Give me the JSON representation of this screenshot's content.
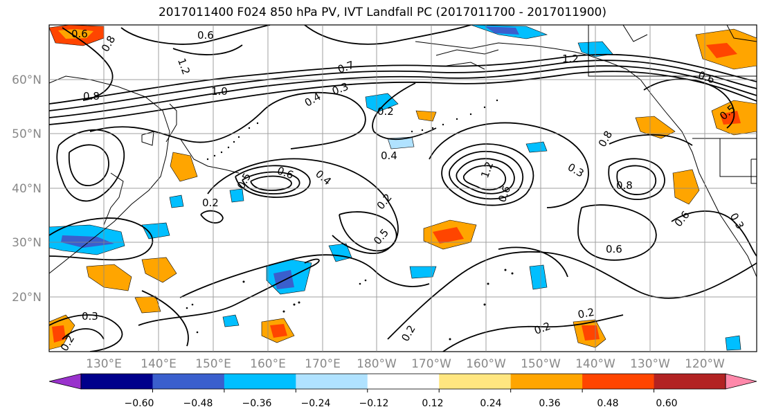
{
  "title": "2017011400 F024 850 hPa PV, IVT Landfall PC (2017011700 - 2017011900)",
  "lat_labels": [
    "60°N",
    "50°N",
    "40°N",
    "30°N",
    "20°N"
  ],
  "lon_labels": [
    "130°E",
    "140°E",
    "150°E",
    "160°E",
    "170°E",
    "180°W",
    "170°W",
    "160°W",
    "150°W",
    "140°W",
    "130°W",
    "120°W"
  ],
  "colorbar": {
    "ticks": [
      "−0.60",
      "−0.48",
      "−0.36",
      "−0.24",
      "−0.12",
      "0.12",
      "0.24",
      "0.36",
      "0.48",
      "0.60"
    ],
    "colors": [
      "#9932cc",
      "#00008b",
      "#3a5fcd",
      "#00bfff",
      "#b0e2ff",
      "#ffffff",
      "#ffe680",
      "#ffa500",
      "#ff4500",
      "#b22222",
      "#ff88aa"
    ]
  },
  "contour_labels": [
    "0.6",
    "0.8",
    "0.6",
    "1.2",
    "0.8",
    "1.0",
    "0.7",
    "0.4",
    "0.3",
    "0.2",
    "0.4",
    "0.2",
    "0.6",
    "0.5",
    "0.4",
    "0.2",
    "0.2",
    "0.5",
    "1.2",
    "0.6",
    "0.3",
    "0.8",
    "0.6",
    "0.3",
    "0.6",
    "0.2",
    "0.2",
    "0.2",
    "0.3",
    "1.2",
    "0.6",
    "0.8",
    "0.5"
  ],
  "colors": {
    "contour": "#000000",
    "grid": "#888888",
    "coast": "#000000"
  }
}
